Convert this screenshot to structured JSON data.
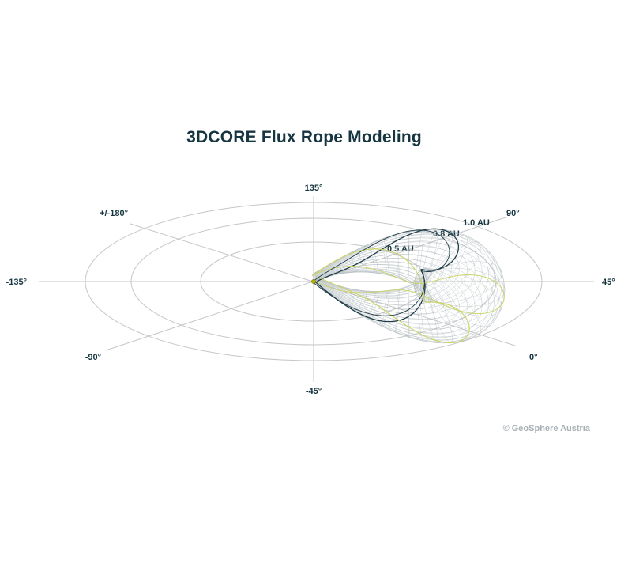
{
  "title": "3DCORE Flux Rope Modeling",
  "credit": "© GeoSphere Austria",
  "diagram": {
    "angle_labels": [
      "135°",
      "90°",
      "45°",
      "0°",
      "-45°",
      "-90°",
      "-135°",
      "+/-180°"
    ],
    "distance_labels": [
      "0.5 AU",
      "0.8 AU",
      "1.0 AU"
    ],
    "colors": {
      "grid": "#c6c6c6",
      "text": "#163540",
      "mesh": "#b2bbbf",
      "rope_dark": "#1f3c48",
      "rope_light": "#cbd56a",
      "sun": "#b9b400"
    }
  }
}
